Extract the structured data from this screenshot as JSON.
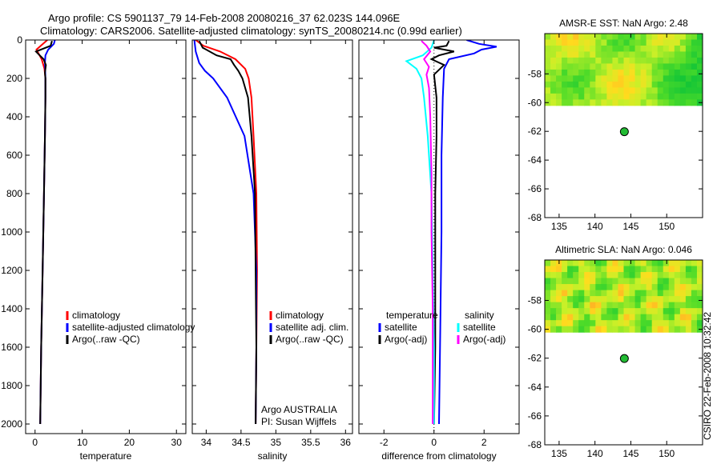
{
  "header": {
    "line1": "Argo profile: CS 5901137_79 14-Feb-2008 20080216_37 62.023S 144.096E",
    "line2": "Climatology: CARS2006. Satellite-adjusted climatology: synTS_20080214.nc (0.99d earlier)"
  },
  "side_label": "CSIRO 22-Feb-2008 10:32:42",
  "colors": {
    "climatology": "#ff0000",
    "satellite": "#0000ff",
    "argo": "#000000",
    "salinity_satellite": "#00ffff",
    "salinity_argo": "#ff00ff"
  },
  "chart_data": [
    {
      "type": "line",
      "xlabel": "temperature",
      "xlim": [
        -2,
        32
      ],
      "ylim": [
        2050,
        0
      ],
      "x_ticks": [
        0,
        10,
        20,
        30
      ],
      "y_ticks": [
        0,
        200,
        400,
        600,
        800,
        1000,
        1200,
        1400,
        1600,
        1800,
        2000
      ],
      "legend": [
        "climatology",
        "satellite-adjusted climatology",
        "Argo(..raw -QC)"
      ],
      "series": [
        {
          "name": "climatology",
          "depth": [
            0,
            50,
            100,
            150,
            200,
            300,
            500,
            800,
            1200,
            1600,
            2000
          ],
          "values": [
            2.6,
            0.3,
            1.4,
            2.0,
            2.2,
            2.2,
            2.1,
            1.9,
            1.6,
            1.3,
            1.1
          ]
        },
        {
          "name": "satellite-adjusted climatology",
          "depth": [
            0,
            20,
            50,
            80,
            120,
            200,
            300,
            500,
            800,
            1200,
            1600,
            2000
          ],
          "values": [
            4.2,
            4.0,
            2.8,
            2.2,
            2.1,
            2.2,
            2.2,
            2.1,
            1.9,
            1.6,
            1.3,
            1.1
          ]
        },
        {
          "name": "Argo(..raw -QC)",
          "depth": [
            5,
            30,
            60,
            80,
            100,
            130,
            170,
            200,
            300,
            500,
            800,
            1200,
            1600,
            2000
          ],
          "values": [
            3.6,
            3.3,
            0.2,
            1.0,
            1.8,
            2.3,
            2.1,
            2.2,
            2.2,
            2.1,
            1.9,
            1.6,
            1.3,
            1.1
          ]
        }
      ]
    },
    {
      "type": "line",
      "xlabel": "salinity",
      "xlim": [
        33.8,
        36.1
      ],
      "ylim": [
        2050,
        0
      ],
      "x_ticks": [
        34,
        34.5,
        35,
        35.5,
        36
      ],
      "x_tick_labels": [
        "34",
        "34.5",
        "35",
        "35.5",
        "36"
      ],
      "legend": [
        "climatology",
        "satellite adj. clim.",
        "Argo(..raw -QC)"
      ],
      "annotations": [
        "Argo AUSTRALIA",
        "PI: Susan Wijffels"
      ],
      "series": [
        {
          "name": "climatology",
          "depth": [
            0,
            30,
            60,
            100,
            150,
            200,
            300,
            500,
            800,
            1200,
            1600,
            2000
          ],
          "values": [
            33.85,
            33.96,
            34.2,
            34.42,
            34.56,
            34.61,
            34.65,
            34.68,
            34.72,
            34.73,
            34.72,
            34.71
          ]
        },
        {
          "name": "satellite adj. clim.",
          "depth": [
            0,
            60,
            120,
            160,
            200,
            300,
            500,
            800,
            1200,
            1600,
            2000
          ],
          "values": [
            33.83,
            33.85,
            33.9,
            33.98,
            34.1,
            34.3,
            34.55,
            34.68,
            34.72,
            34.72,
            34.71
          ]
        },
        {
          "name": "Argo(..raw -QC)",
          "depth": [
            5,
            40,
            80,
            100,
            130,
            160,
            200,
            300,
            500,
            800,
            1200,
            1600,
            2000
          ],
          "values": [
            33.9,
            33.95,
            34.15,
            34.35,
            34.4,
            34.46,
            34.52,
            34.6,
            34.65,
            34.7,
            34.71,
            34.72,
            34.71
          ]
        }
      ]
    },
    {
      "type": "line",
      "xlabel": "difference from climatology",
      "xlim": [
        -3,
        3.4
      ],
      "ylim": [
        2050,
        0
      ],
      "x_ticks": [
        -2,
        0,
        2
      ],
      "legend_groups": [
        {
          "title": "temperature",
          "entries": [
            "satellite",
            "Argo(-adj)"
          ]
        },
        {
          "title": "salinity",
          "entries": [
            "satellite",
            "Argo(-adj)"
          ]
        }
      ],
      "series": [
        {
          "name": "temperature satellite",
          "depth": [
            0,
            20,
            35,
            50,
            70,
            100,
            150,
            300,
            600,
            1000,
            1500,
            2000
          ],
          "values": [
            1.3,
            1.8,
            2.5,
            1.9,
            1.6,
            0.6,
            0.4,
            0.35,
            0.3,
            0.3,
            0.25,
            0.2
          ]
        },
        {
          "name": "temperature Argo(-adj)",
          "depth": [
            5,
            30,
            40,
            60,
            80,
            100,
            130,
            180,
            300,
            500,
            800,
            1200,
            1600,
            2000
          ],
          "values": [
            0.6,
            0.5,
            0.0,
            0.8,
            0.2,
            -0.1,
            0.4,
            0.0,
            0.1,
            0.1,
            0.05,
            0.05,
            0.05,
            0.0
          ]
        },
        {
          "name": "salinity satellite",
          "depth": [
            0,
            40,
            80,
            110,
            150,
            200,
            300,
            500,
            800,
            1200,
            1600,
            2000
          ],
          "values": [
            0.0,
            -0.1,
            -0.45,
            -1.1,
            -0.7,
            -0.5,
            -0.4,
            -0.25,
            -0.1,
            -0.05,
            0.0,
            0.0
          ]
        },
        {
          "name": "salinity Argo(-adj)",
          "depth": [
            5,
            30,
            60,
            100,
            140,
            180,
            250,
            400,
            700,
            1000,
            1400,
            1800,
            2000
          ],
          "values": [
            -0.5,
            -0.3,
            -0.15,
            -0.4,
            -0.2,
            -0.3,
            -0.2,
            -0.15,
            -0.1,
            -0.1,
            -0.05,
            -0.05,
            -0.05
          ]
        }
      ]
    },
    {
      "type": "heatmap",
      "title": "AMSR-E SST: NaN Argo: 2.48",
      "xlim": [
        133,
        155
      ],
      "ylim": [
        -68,
        -55.2
      ],
      "x_ticks": [
        135,
        140,
        145,
        150
      ],
      "y_ticks": [
        -58,
        -60,
        -62,
        -64,
        -66,
        -68
      ],
      "argo_position": {
        "lon": 144.096,
        "lat": -62.023
      },
      "field_extent_lat": [
        -60.2,
        -55.2
      ]
    },
    {
      "type": "heatmap",
      "title": "Altimetric SLA: NaN Argo: 0.046",
      "xlim": [
        133,
        155
      ],
      "ylim": [
        -68,
        -55.2
      ],
      "x_ticks": [
        135,
        140,
        145,
        150
      ],
      "y_ticks": [
        -58,
        -60,
        -62,
        -64,
        -66,
        -68
      ],
      "argo_position": {
        "lon": 144.096,
        "lat": -62.023
      },
      "field_extent_lat": [
        -60.2,
        -55.2
      ]
    }
  ]
}
